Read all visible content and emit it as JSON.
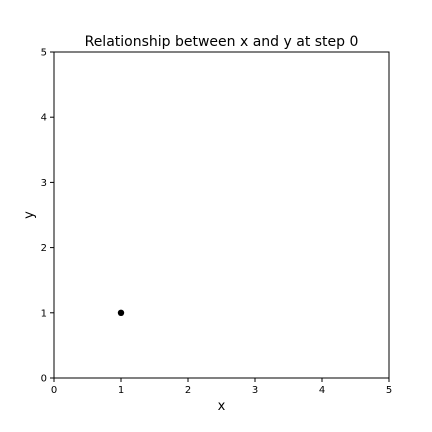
{
  "chart_data": {
    "type": "scatter",
    "title": "Relationship between x and y at step 0",
    "xlabel": "x",
    "ylabel": "y",
    "xlim": [
      0,
      5
    ],
    "ylim": [
      0,
      5
    ],
    "xticks": [
      "0",
      "1",
      "2",
      "3",
      "4",
      "5"
    ],
    "yticks": [
      "0",
      "1",
      "2",
      "3",
      "4",
      "5"
    ],
    "grid": false,
    "series": [
      {
        "points": [
          {
            "x": 1,
            "y": 1
          }
        ],
        "color": "#000000"
      }
    ]
  }
}
